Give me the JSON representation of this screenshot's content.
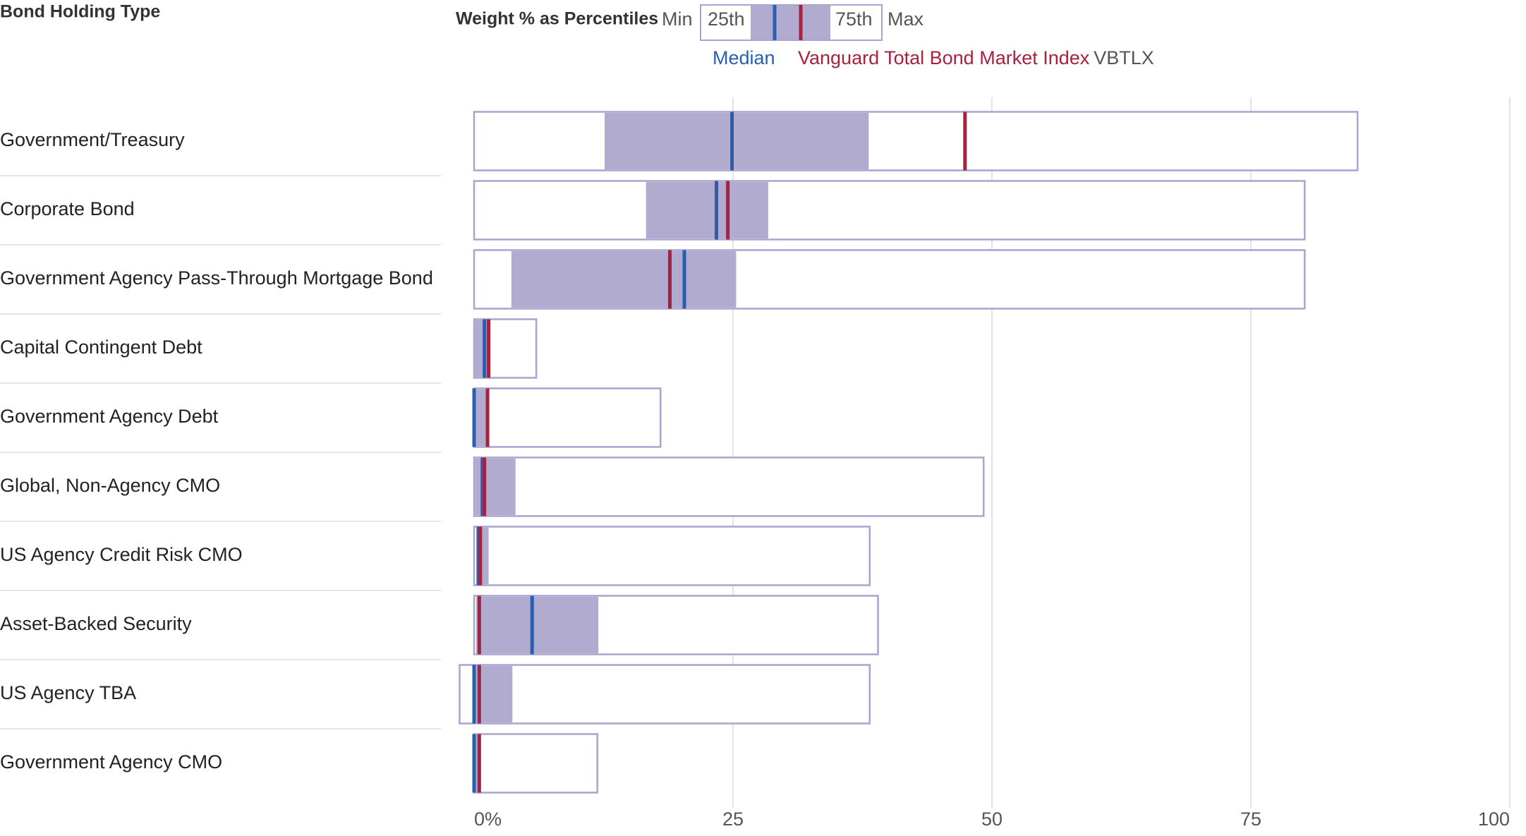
{
  "chart_data": {
    "type": "range",
    "category_header": "Bond Holding Type",
    "legend_title": "Weight % as Percentiles",
    "categories": [
      "Government/Treasury",
      "Corporate Bond",
      "Government Agency Pass-Through Mortgage Bond",
      "Capital Contingent Debt",
      "Government Agency Debt",
      "Global, Non-Agency CMO",
      "US Agency Credit Risk CMO",
      "Asset-Backed Security",
      "US Agency TBA",
      "Government Agency CMO"
    ],
    "series": [
      {
        "name": "Min",
        "color": "#a9a3cf",
        "values": [
          0,
          0,
          0,
          0,
          0,
          0,
          0,
          0,
          -1.4,
          0
        ]
      },
      {
        "name": "25th",
        "color": "#b1abcf",
        "values": [
          12.6,
          16.6,
          3.6,
          0,
          0,
          0.1,
          0.3,
          0.2,
          0,
          0
        ]
      },
      {
        "name": "Median",
        "color": "#2a5fb0",
        "values": [
          24.9,
          23.4,
          20.3,
          1.0,
          0,
          0.8,
          0.4,
          5.6,
          0,
          0
        ]
      },
      {
        "name": "75th",
        "color": "#b1abcf",
        "values": [
          38.1,
          28.4,
          25.3,
          1.4,
          1.2,
          4.0,
          1.4,
          12.0,
          3.7,
          0.4
        ]
      },
      {
        "name": "Max",
        "color": "#a9a3cf",
        "values": [
          85.3,
          80.2,
          80.2,
          6.0,
          18.0,
          49.2,
          38.2,
          39.0,
          38.2,
          11.9
        ]
      },
      {
        "name": "Vanguard Total Bond Market Index",
        "ticker": "VBTLX",
        "color": "#a8213f",
        "values": [
          47.4,
          24.5,
          18.9,
          1.4,
          1.3,
          1.0,
          0.6,
          0.5,
          0.5,
          0.5
        ]
      }
    ],
    "xlim": [
      0,
      100
    ],
    "xticks": [
      {
        "value": 0,
        "label": "0%"
      },
      25,
      50,
      75,
      100
    ],
    "grid": true
  }
}
